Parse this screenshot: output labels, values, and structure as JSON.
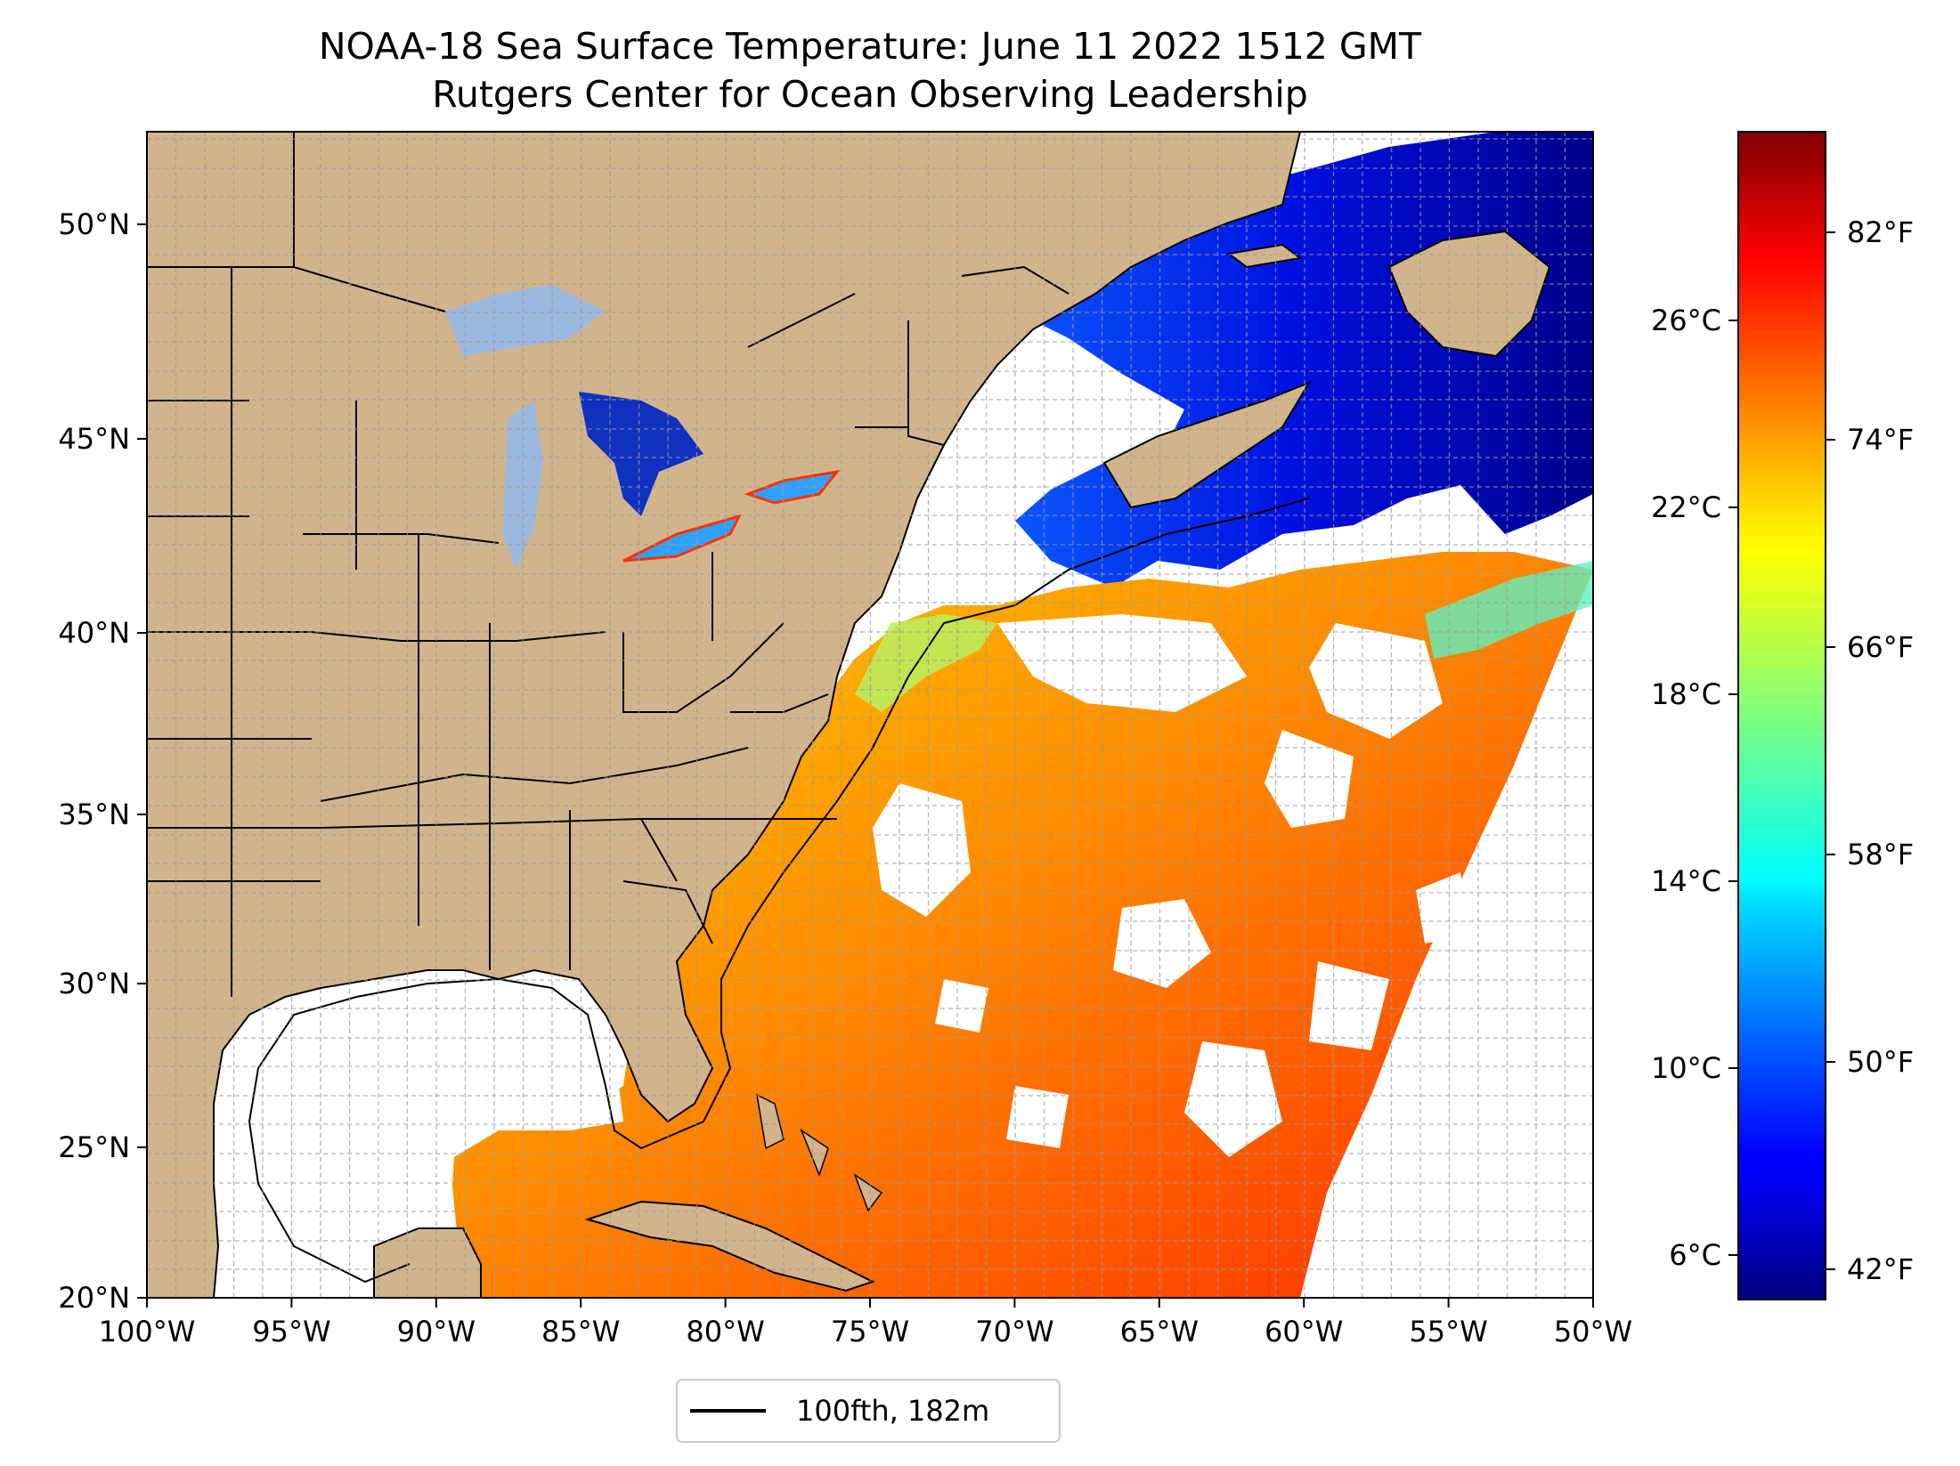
{
  "map": {
    "title_line1": "NOAA-18 Sea Surface Temperature: June 11 2022 1512 GMT",
    "title_line2": "Rutgers Center for Ocean Observing Leadership",
    "lon_ticks": [
      "100°W",
      "95°W",
      "90°W",
      "85°W",
      "80°W",
      "75°W",
      "70°W",
      "65°W",
      "60°W",
      "55°W",
      "50°W"
    ],
    "lat_ticks": [
      "20°N",
      "25°N",
      "30°N",
      "35°N",
      "40°N",
      "45°N",
      "50°N"
    ],
    "extent": {
      "lon_min": -100,
      "lon_max": -50,
      "lat_min": 20,
      "lat_max": 52.3
    },
    "gridlines": true,
    "colors": {
      "land": "#d2b48c",
      "lakes": "#9cb9e0",
      "no_data": "#ffffff",
      "borders": "#000000"
    },
    "legend": {
      "label": "100fth, 182m",
      "placement": "bottom-center, below map"
    }
  },
  "colorbar": {
    "colormap": "jet",
    "celsius_ticks": [
      "6°C",
      "10°C",
      "14°C",
      "18°C",
      "22°C",
      "26°C"
    ],
    "fahrenheit_ticks": [
      "42°F",
      "50°F",
      "58°F",
      "66°F",
      "74°F",
      "82°F"
    ]
  }
}
